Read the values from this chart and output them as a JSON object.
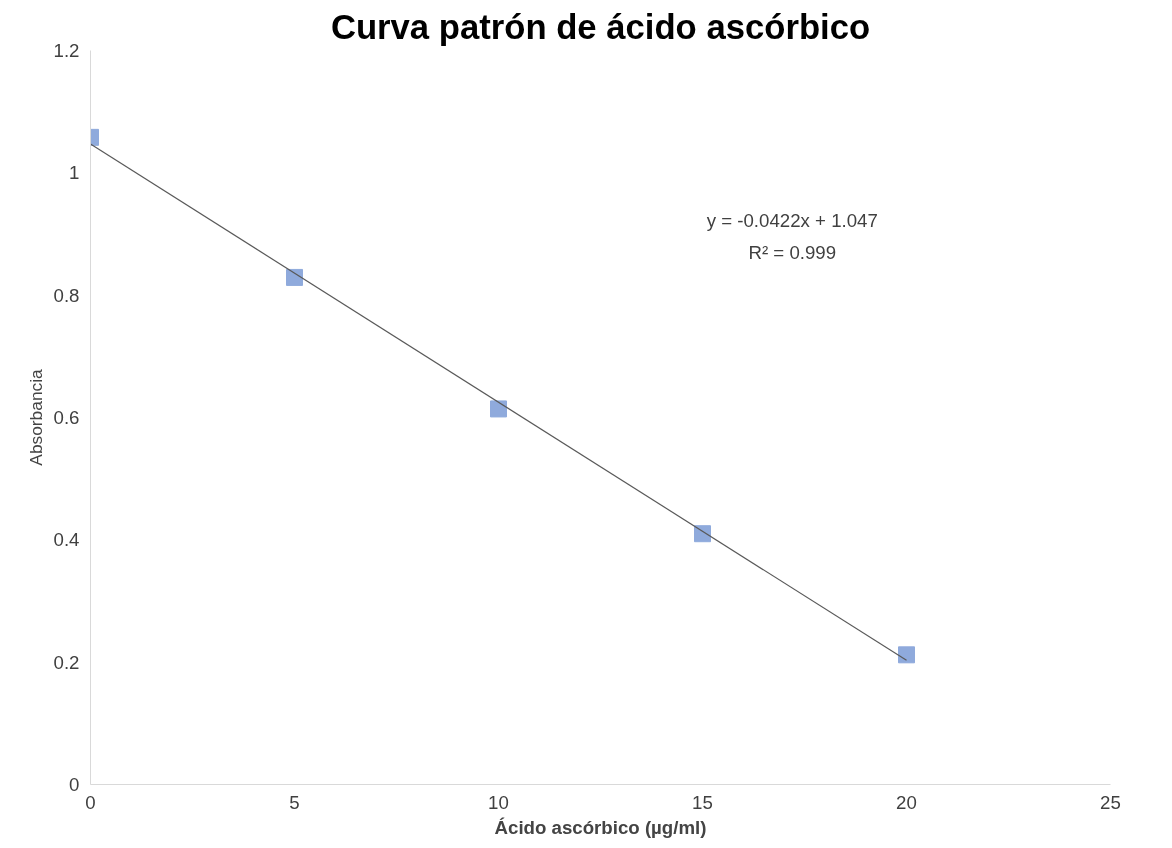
{
  "chart_data": {
    "type": "scatter",
    "title": "Curva patrón de ácido ascórbico",
    "xlabel": "Ácido ascórbico (µg/ml)",
    "ylabel": "Absorbancia",
    "x": [
      0,
      5,
      10,
      15,
      20
    ],
    "series": [
      {
        "color": "#8faadc",
        "marker": "square",
        "values": [
          1.058,
          0.829,
          0.614,
          0.41,
          0.212
        ]
      },
      {
        "type": "line",
        "color": "#595959",
        "marker": "none",
        "x": [
          0,
          20
        ],
        "values": [
          1.047,
          0.203
        ]
      }
    ],
    "annotations": [
      "y = -0.0422x + 1.047",
      "R² = 0.999"
    ],
    "xlim": [
      0,
      25
    ],
    "xticks": [
      0,
      5,
      10,
      15,
      20,
      25
    ],
    "ylim": [
      0,
      1.2
    ],
    "yticks": [
      0,
      0.2,
      0.4,
      0.6,
      0.8,
      1,
      1.2
    ],
    "grid": false
  }
}
